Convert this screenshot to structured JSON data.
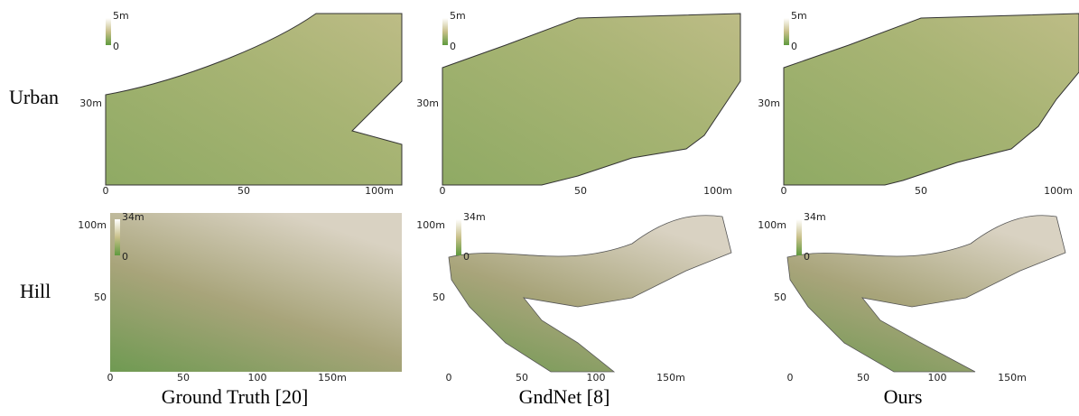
{
  "rows": [
    "Urban",
    "Hill"
  ],
  "columns": [
    "Ground Truth [20]",
    "GndNet [8]",
    "Ours"
  ],
  "panels": [
    {
      "colorbar": [
        "5m",
        "0"
      ],
      "yticks": [
        "30m"
      ],
      "xticks": [
        "0",
        "50",
        "100m"
      ]
    },
    {
      "colorbar": [
        "5m",
        "0"
      ],
      "yticks": [
        "30m"
      ],
      "xticks": [
        "0",
        "50",
        "100m"
      ]
    },
    {
      "colorbar": [
        "5m",
        "0"
      ],
      "yticks": [
        "30m"
      ],
      "xticks": [
        "0",
        "50",
        "100m"
      ]
    },
    {
      "colorbar": [
        "34m",
        "0"
      ],
      "yticks": [
        "100m",
        "50"
      ],
      "xticks": [
        "0",
        "50",
        "100",
        "150m"
      ]
    },
    {
      "colorbar": [
        "34m",
        "0"
      ],
      "yticks": [
        "100m",
        "50"
      ],
      "xticks": [
        "0",
        "50",
        "100",
        "150m"
      ]
    },
    {
      "colorbar": [
        "34m",
        "0"
      ],
      "yticks": [
        "100m",
        "50"
      ],
      "xticks": [
        "0",
        "50",
        "100",
        "150m"
      ]
    }
  ]
}
